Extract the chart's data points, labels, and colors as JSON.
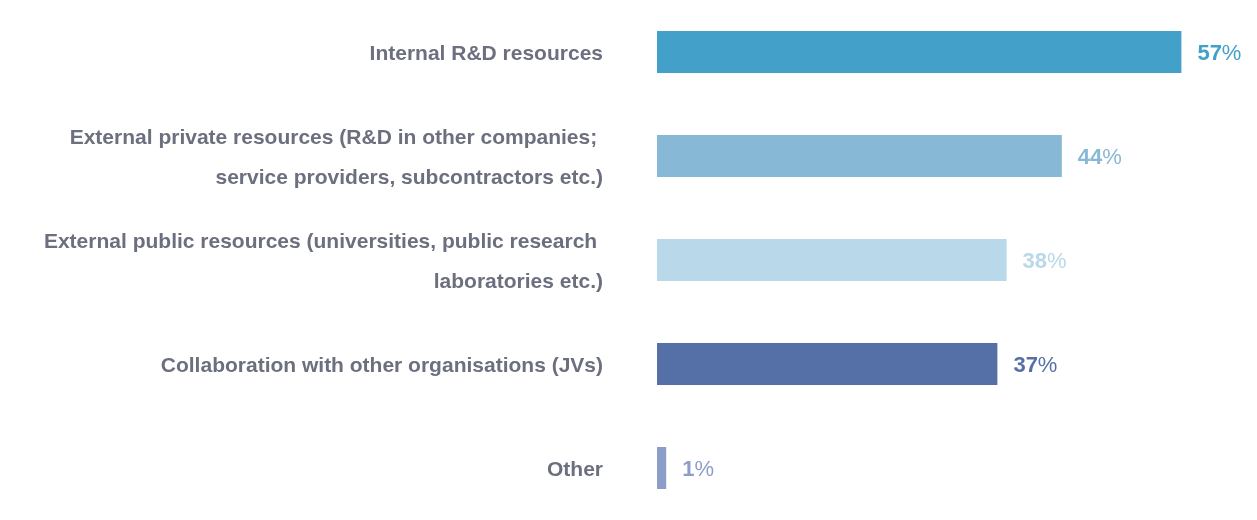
{
  "chart_data": {
    "type": "bar",
    "orientation": "horizontal",
    "categories": [
      "Internal R&D resources",
      "External private resources (R&D in other companies; service providers, subcontractors etc.)",
      "External public resources (universities, public research laboratories etc.)",
      "Collaboration with other organisations (JVs)",
      "Other"
    ],
    "values": [
      57,
      44,
      38,
      37,
      1
    ],
    "colors": [
      "#42a0c9",
      "#87b8d6",
      "#b9d8e9",
      "#5570a6",
      "#8c9dc9"
    ],
    "value_labels": [
      "57%",
      "44%",
      "38%",
      "37%",
      "1%"
    ]
  }
}
